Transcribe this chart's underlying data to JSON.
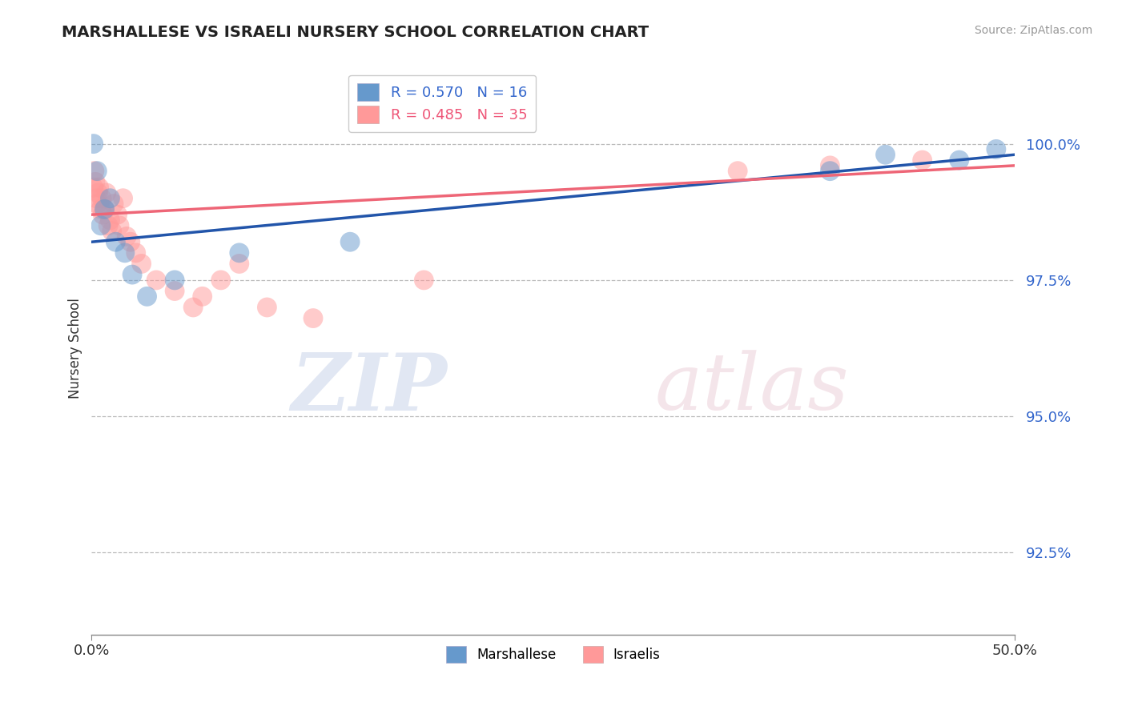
{
  "title": "MARSHALLESE VS ISRAELI NURSERY SCHOOL CORRELATION CHART",
  "source": "Source: ZipAtlas.com",
  "xlabel_marshallese": "Marshallese",
  "xlabel_israelis": "Israelis",
  "ylabel": "Nursery School",
  "xlim": [
    0.0,
    50.0
  ],
  "ylim": [
    91.0,
    101.5
  ],
  "x_ticks": [
    0.0,
    50.0
  ],
  "x_tick_labels": [
    "0.0%",
    "50.0%"
  ],
  "y_ticks": [
    92.5,
    95.0,
    97.5,
    100.0
  ],
  "y_tick_labels": [
    "92.5%",
    "95.0%",
    "97.5%",
    "100.0%"
  ],
  "legend_blue_label": "R = 0.570   N = 16",
  "legend_pink_label": "R = 0.485   N = 35",
  "blue_color": "#6699CC",
  "pink_color": "#FF9999",
  "blue_line_color": "#2255AA",
  "pink_line_color": "#EE6677",
  "blue_scatter_x": [
    0.1,
    0.3,
    0.5,
    0.7,
    1.0,
    1.3,
    1.8,
    2.2,
    3.0,
    4.5,
    8.0,
    14.0,
    40.0,
    43.0,
    47.0,
    49.0
  ],
  "blue_scatter_y": [
    100.0,
    99.5,
    98.5,
    98.8,
    99.0,
    98.2,
    98.0,
    97.6,
    97.2,
    97.5,
    98.0,
    98.2,
    99.5,
    99.8,
    99.7,
    99.9
  ],
  "pink_scatter_x": [
    0.1,
    0.15,
    0.2,
    0.25,
    0.3,
    0.35,
    0.4,
    0.5,
    0.55,
    0.6,
    0.7,
    0.8,
    0.9,
    1.0,
    1.1,
    1.2,
    1.4,
    1.5,
    1.7,
    1.9,
    2.1,
    2.4,
    2.7,
    3.5,
    4.5,
    5.5,
    6.0,
    7.0,
    8.0,
    9.5,
    12.0,
    18.0,
    35.0,
    40.0,
    45.0
  ],
  "pink_scatter_y": [
    99.2,
    99.5,
    99.3,
    99.0,
    98.9,
    99.1,
    99.2,
    98.8,
    99.0,
    98.7,
    98.8,
    99.1,
    98.5,
    98.6,
    98.4,
    98.9,
    98.7,
    98.5,
    99.0,
    98.3,
    98.2,
    98.0,
    97.8,
    97.5,
    97.3,
    97.0,
    97.2,
    97.5,
    97.8,
    97.0,
    96.8,
    97.5,
    99.5,
    99.6,
    99.7
  ],
  "blue_line_x": [
    0.0,
    50.0
  ],
  "blue_line_y": [
    98.2,
    99.8
  ],
  "pink_line_x": [
    0.0,
    50.0
  ],
  "pink_line_y": [
    98.7,
    99.6
  ]
}
